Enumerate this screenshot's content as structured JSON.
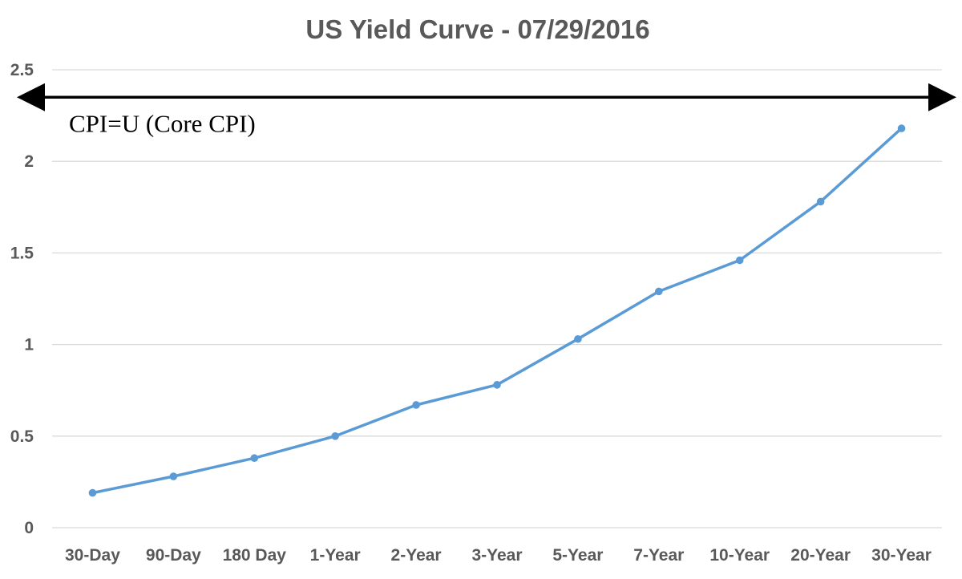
{
  "chart_data": {
    "type": "line",
    "title": "US Yield Curve - 07/29/2016",
    "xlabel": "",
    "ylabel": "",
    "categories": [
      "30-Day",
      "90-Day",
      "180 Day",
      "1-Year",
      "2-Year",
      "3-Year",
      "5-Year",
      "7-Year",
      "10-Year",
      "20-Year",
      "30-Year"
    ],
    "series": [
      {
        "values": [
          0.19,
          0.28,
          0.38,
          0.5,
          0.67,
          0.78,
          1.03,
          1.29,
          1.46,
          1.78,
          2.18
        ],
        "color": "#5b9bd5"
      }
    ],
    "ylim": [
      0,
      2.5
    ],
    "yticks": [
      "0",
      "0.5",
      "1",
      "1.5",
      "2",
      "2.5"
    ],
    "grid": true,
    "legend": "none",
    "annotation": {
      "label": "CPI=U (Core CPI)",
      "value": 2.35,
      "style": "double-headed-arrow",
      "color": "#000000"
    }
  }
}
